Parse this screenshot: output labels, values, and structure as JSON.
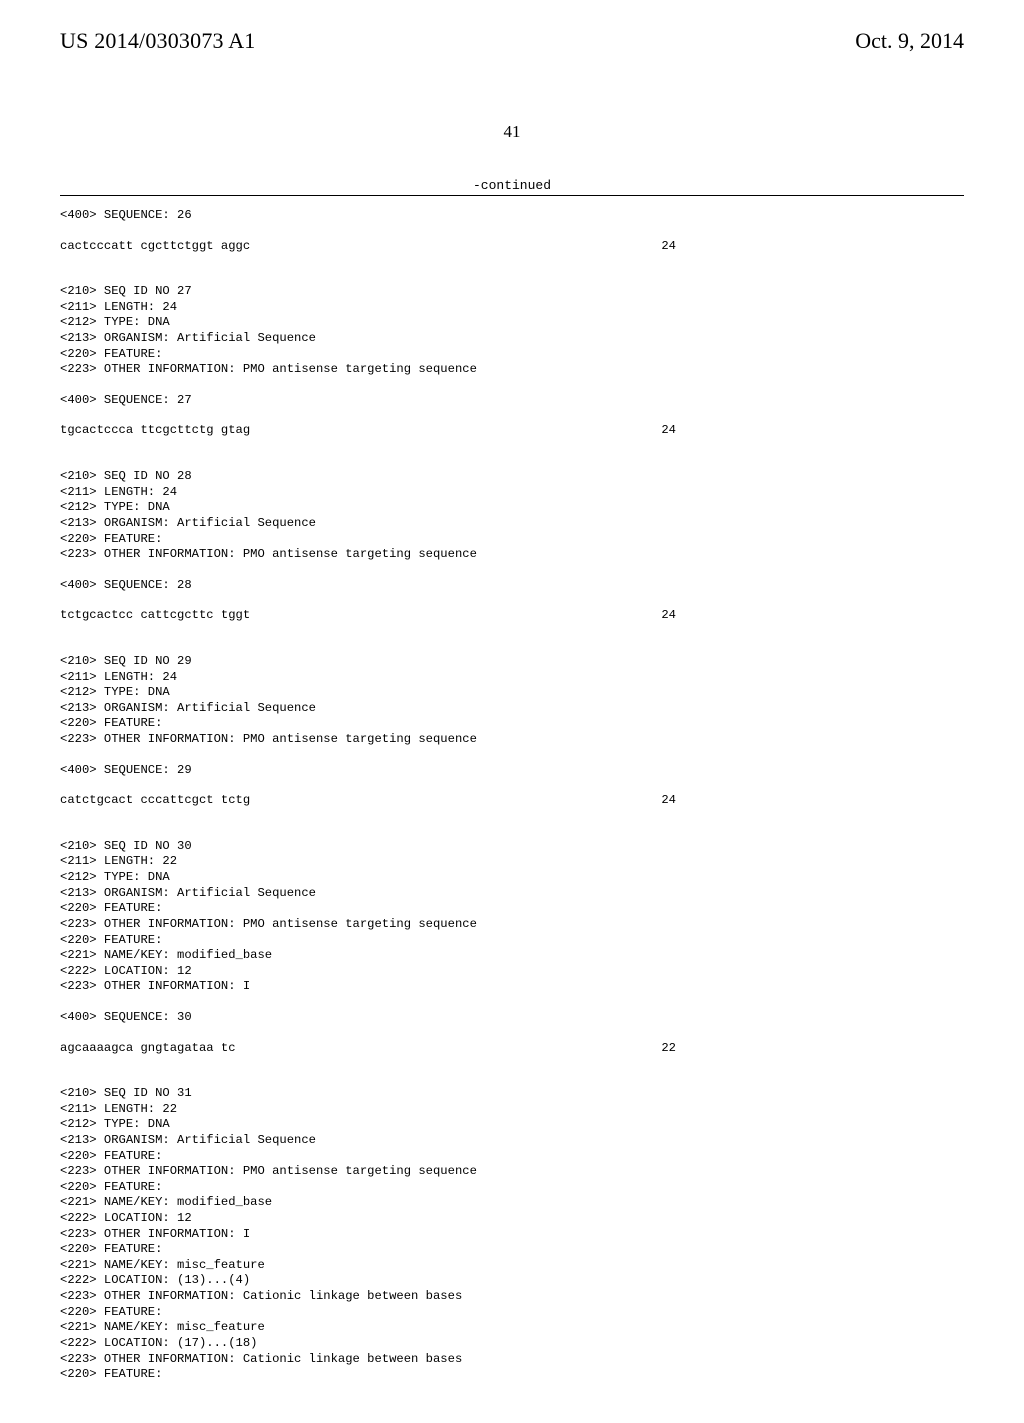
{
  "header": {
    "publication_number": "US 2014/0303073 A1",
    "publication_date": "Oct. 9, 2014"
  },
  "page_number": "41",
  "continued_label": "-continued",
  "sequences": [
    {
      "pre_lines": [
        "<400> SEQUENCE: 26"
      ],
      "seq_line": "cactcccatt cgcttctggt aggc",
      "seq_len": "24"
    },
    {
      "pre_lines": [
        "<210> SEQ ID NO 27",
        "<211> LENGTH: 24",
        "<212> TYPE: DNA",
        "<213> ORGANISM: Artificial Sequence",
        "<220> FEATURE:",
        "<223> OTHER INFORMATION: PMO antisense targeting sequence",
        "",
        "<400> SEQUENCE: 27"
      ],
      "seq_line": "tgcactccca ttcgcttctg gtag",
      "seq_len": "24"
    },
    {
      "pre_lines": [
        "<210> SEQ ID NO 28",
        "<211> LENGTH: 24",
        "<212> TYPE: DNA",
        "<213> ORGANISM: Artificial Sequence",
        "<220> FEATURE:",
        "<223> OTHER INFORMATION: PMO antisense targeting sequence",
        "",
        "<400> SEQUENCE: 28"
      ],
      "seq_line": "tctgcactcc cattcgcttc tggt",
      "seq_len": "24"
    },
    {
      "pre_lines": [
        "<210> SEQ ID NO 29",
        "<211> LENGTH: 24",
        "<212> TYPE: DNA",
        "<213> ORGANISM: Artificial Sequence",
        "<220> FEATURE:",
        "<223> OTHER INFORMATION: PMO antisense targeting sequence",
        "",
        "<400> SEQUENCE: 29"
      ],
      "seq_line": "catctgcact cccattcgct tctg",
      "seq_len": "24"
    },
    {
      "pre_lines": [
        "<210> SEQ ID NO 30",
        "<211> LENGTH: 22",
        "<212> TYPE: DNA",
        "<213> ORGANISM: Artificial Sequence",
        "<220> FEATURE:",
        "<223> OTHER INFORMATION: PMO antisense targeting sequence",
        "<220> FEATURE:",
        "<221> NAME/KEY: modified_base",
        "<222> LOCATION: 12",
        "<223> OTHER INFORMATION: I",
        "",
        "<400> SEQUENCE: 30"
      ],
      "seq_line": "agcaaaagca gngtagataa tc",
      "seq_len": "22"
    },
    {
      "pre_lines": [
        "<210> SEQ ID NO 31",
        "<211> LENGTH: 22",
        "<212> TYPE: DNA",
        "<213> ORGANISM: Artificial Sequence",
        "<220> FEATURE:",
        "<223> OTHER INFORMATION: PMO antisense targeting sequence",
        "<220> FEATURE:",
        "<221> NAME/KEY: modified_base",
        "<222> LOCATION: 12",
        "<223> OTHER INFORMATION: I",
        "<220> FEATURE:",
        "<221> NAME/KEY: misc_feature",
        "<222> LOCATION: (13)...(4)",
        "<223> OTHER INFORMATION: Cationic linkage between bases",
        "<220> FEATURE:",
        "<221> NAME/KEY: misc_feature",
        "<222> LOCATION: (17)...(18)",
        "<223> OTHER INFORMATION: Cationic linkage between bases",
        "<220> FEATURE:"
      ],
      "seq_line": null,
      "seq_len": null
    }
  ]
}
